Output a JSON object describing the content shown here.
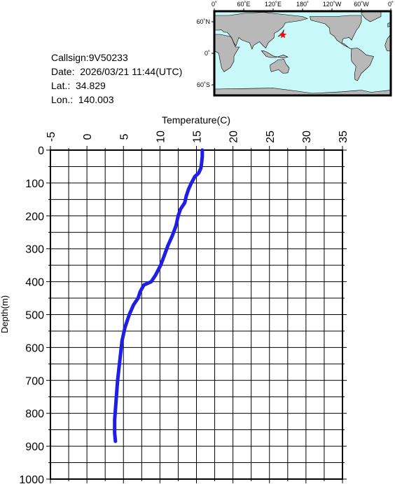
{
  "info": {
    "callsign": "Callsign:9V50233",
    "date": "Date:  2026/03/21 11:44(UTC)",
    "lat": "Lat.:  34.829",
    "lon": "Lon.:  140.003"
  },
  "map": {
    "lon_labels": [
      "0˚",
      "60˚E",
      "120˚E",
      "180˚",
      "120˚W",
      "60˚W",
      "0˚"
    ],
    "lat_labels": [
      "60˚N",
      "0˚",
      "60˚S"
    ],
    "ocean_color": "#c8f8f8",
    "land_color": "#b8b8b8",
    "marker": {
      "lat": 34.829,
      "lon": 140.003,
      "color": "#ff0000",
      "icon": "star-icon"
    }
  },
  "chart_data": {
    "type": "line",
    "title": "",
    "xlabel": "Temperature(C)",
    "ylabel": "Depth(m)",
    "xlim": [
      -5,
      35
    ],
    "ylim": [
      1000,
      0
    ],
    "x_ticks": [
      "-5",
      "0",
      "5",
      "10",
      "15",
      "20",
      "25",
      "30",
      "35"
    ],
    "y_ticks": [
      "0",
      "100",
      "200",
      "300",
      "400",
      "500",
      "600",
      "700",
      "800",
      "900",
      "1000"
    ],
    "grid": true,
    "line_color": "#1e1ee6",
    "series": [
      {
        "name": "",
        "points": [
          [
            15.8,
            0
          ],
          [
            15.8,
            20
          ],
          [
            15.7,
            40
          ],
          [
            15.6,
            55
          ],
          [
            15.3,
            70
          ],
          [
            14.8,
            80
          ],
          [
            14.3,
            100
          ],
          [
            13.9,
            120
          ],
          [
            13.6,
            140
          ],
          [
            13.4,
            160
          ],
          [
            12.8,
            180
          ],
          [
            12.5,
            200
          ],
          [
            12.2,
            230
          ],
          [
            11.7,
            260
          ],
          [
            11.1,
            290
          ],
          [
            10.6,
            320
          ],
          [
            10.1,
            350
          ],
          [
            9.4,
            380
          ],
          [
            8.8,
            400
          ],
          [
            7.8,
            410
          ],
          [
            7.3,
            430
          ],
          [
            7.0,
            450
          ],
          [
            6.4,
            470
          ],
          [
            5.8,
            500
          ],
          [
            5.2,
            540
          ],
          [
            4.8,
            580
          ],
          [
            4.6,
            620
          ],
          [
            4.4,
            660
          ],
          [
            4.2,
            700
          ],
          [
            4.0,
            760
          ],
          [
            3.8,
            820
          ],
          [
            3.8,
            860
          ],
          [
            3.9,
            885
          ]
        ]
      }
    ]
  }
}
